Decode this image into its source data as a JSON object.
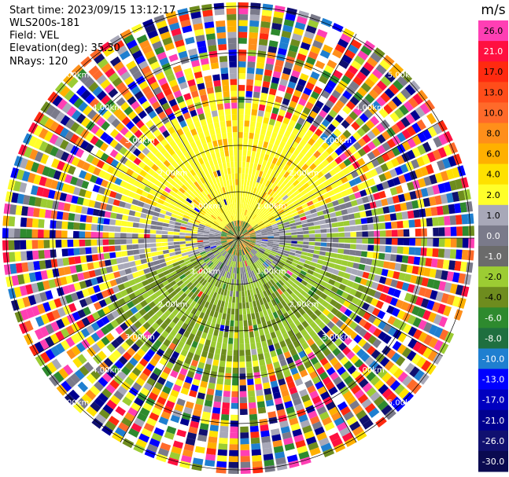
{
  "header": {
    "start_time": "Start time: 2023/09/15 13:12:17",
    "instrument": "WLS200s-181",
    "field": "Field: VEL",
    "elevation": "Elevation(deg): 35.30",
    "nrays": "NRays: 120"
  },
  "colorbar": {
    "unit": "m/s",
    "ticks": [
      "26.0",
      "21.0",
      "17.0",
      "13.0",
      "10.0",
      "8.0",
      "6.0",
      "4.0",
      "2.0",
      "1.0",
      "0.0",
      "-1.0",
      "-2.0",
      "-4.0",
      "-6.0",
      "-8.0",
      "-10.0",
      "-13.0",
      "-17.0",
      "-21.0",
      "-26.0",
      "-30.0"
    ],
    "colors": [
      "#ff3fb4",
      "#ff1040",
      "#ff2a10",
      "#ff4d1a",
      "#ff6a2a",
      "#ff8f1a",
      "#ffb000",
      "#ffe100",
      "#ffff2a",
      "#a8a8b8",
      "#7a7a8a",
      "#6b6b6b",
      "#9ccc33",
      "#6e8c1e",
      "#2e8a2e",
      "#1f6f3f",
      "#1f7fd0",
      "#0000ff",
      "#0000c0",
      "#000090",
      "#101070",
      "#0a0a50"
    ]
  },
  "rings": {
    "labels": [
      "1.00km",
      "2.00km",
      "3.00km",
      "4.00km",
      "5.00km"
    ]
  }
}
